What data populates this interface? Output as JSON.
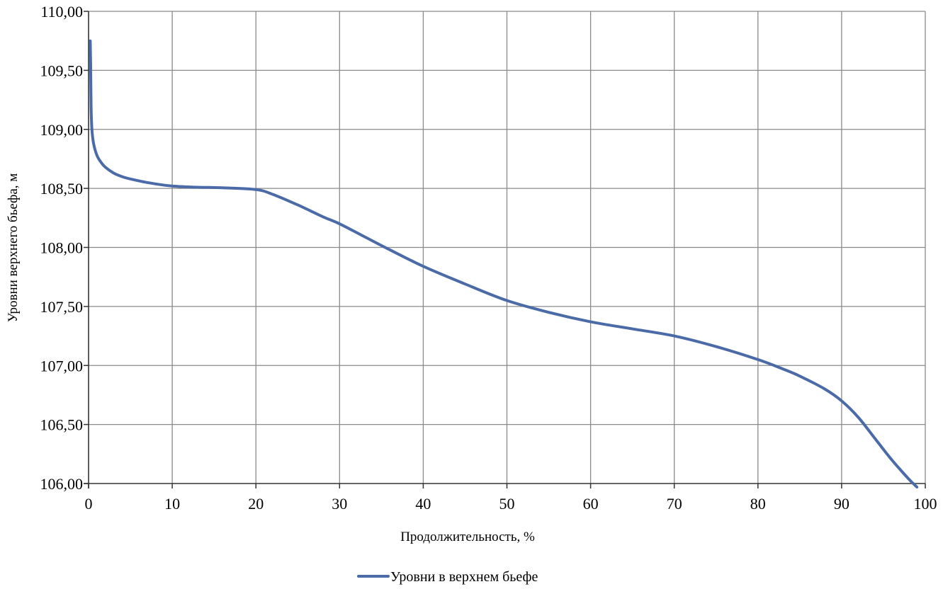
{
  "chart_data": {
    "type": "line",
    "title": "",
    "xlabel": "Продолжительность, %",
    "ylabel": "Уровни верхнего бьефа, м",
    "xlim": [
      0,
      100
    ],
    "ylim": [
      106.0,
      110.0
    ],
    "x_ticks": [
      "0",
      "10",
      "20",
      "30",
      "40",
      "50",
      "60",
      "70",
      "80",
      "90",
      "100"
    ],
    "y_ticks": [
      "106,00",
      "106,50",
      "107,00",
      "107,50",
      "108,00",
      "108,50",
      "109,00",
      "109,50",
      "110,00"
    ],
    "grid": true,
    "legend_position": "bottom-center",
    "series": [
      {
        "name": "Уровни в верхнем бьефе",
        "color": "#4a6aa8",
        "x": [
          0.2,
          0.25,
          0.3,
          0.4,
          0.6,
          1,
          1.5,
          2,
          3,
          4,
          5,
          7,
          10,
          13,
          16,
          20,
          22,
          25,
          28,
          30,
          33,
          36,
          40,
          45,
          50,
          55,
          60,
          65,
          70,
          75,
          80,
          83,
          85,
          88,
          90,
          92,
          94,
          96,
          98,
          99
        ],
        "y": [
          109.75,
          109.55,
          109.2,
          109.0,
          108.88,
          108.78,
          108.72,
          108.68,
          108.63,
          108.6,
          108.58,
          108.55,
          108.52,
          108.51,
          108.505,
          108.49,
          108.45,
          108.36,
          108.26,
          108.2,
          108.09,
          107.98,
          107.84,
          107.69,
          107.55,
          107.45,
          107.37,
          107.31,
          107.25,
          107.16,
          107.05,
          106.97,
          106.91,
          106.8,
          106.7,
          106.56,
          106.38,
          106.2,
          106.04,
          105.97
        ]
      }
    ]
  }
}
